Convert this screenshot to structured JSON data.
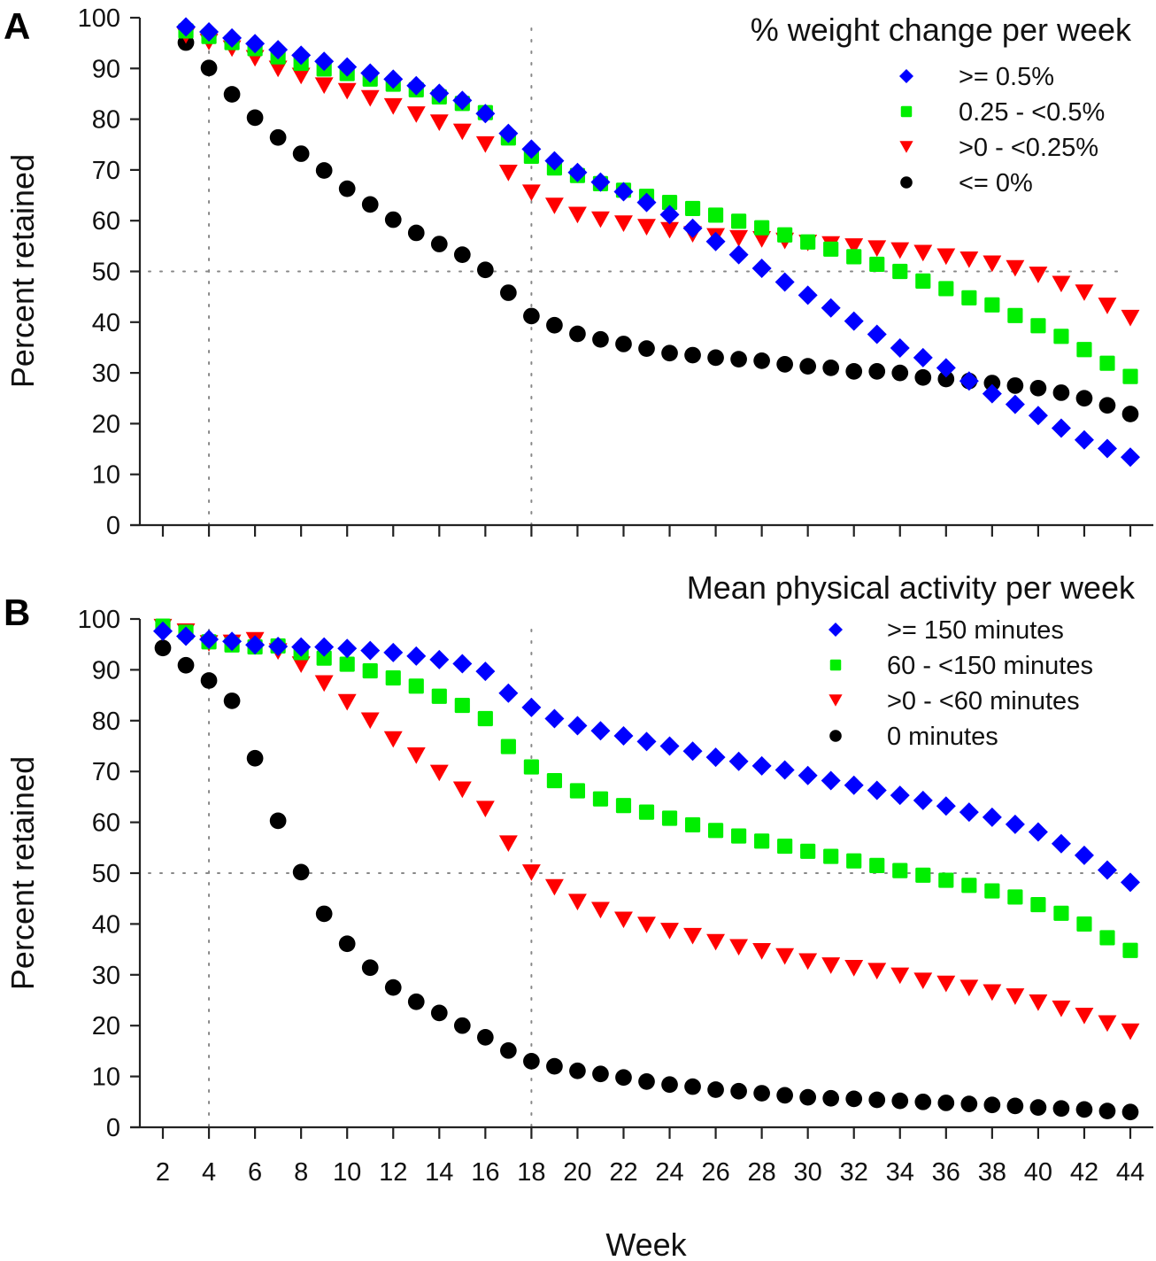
{
  "figure": {
    "xlabel": "Week",
    "ylabel": "Percent retained"
  },
  "chart_data": [
    {
      "type": "scatter",
      "panel": "A",
      "title": "% weight change per week",
      "xlabel": "",
      "ylabel": "Percent retained",
      "xlim": [
        2,
        44
      ],
      "ylim": [
        0,
        100
      ],
      "xticks": [
        2,
        4,
        6,
        8,
        10,
        12,
        14,
        16,
        18,
        20,
        22,
        24,
        26,
        28,
        30,
        32,
        34,
        36,
        38,
        40,
        42,
        44
      ],
      "xtick_labels_shown": false,
      "yticks": [
        0,
        10,
        20,
        30,
        40,
        50,
        60,
        70,
        80,
        90,
        100
      ],
      "reference_lines": {
        "x": [
          4,
          18
        ],
        "y": [
          50
        ]
      },
      "grid": false,
      "legend_position": "top-right",
      "series": [
        {
          "name": ">= 0.5%",
          "marker": "diamond",
          "color": "#0000ff",
          "x": [
            3,
            4,
            5,
            6,
            7,
            8,
            9,
            10,
            11,
            12,
            13,
            14,
            15,
            16,
            17,
            18,
            19,
            20,
            21,
            22,
            23,
            24,
            25,
            26,
            27,
            28,
            29,
            30,
            31,
            32,
            33,
            34,
            35,
            36,
            37,
            38,
            39,
            40,
            41,
            42,
            43,
            44
          ],
          "values": [
            98.2,
            97.2,
            96.0,
            94.9,
            93.7,
            92.6,
            91.4,
            90.3,
            89.1,
            87.9,
            86.6,
            85.1,
            83.7,
            81.1,
            77.2,
            74.1,
            71.8,
            69.5,
            67.6,
            65.7,
            63.6,
            61.2,
            58.5,
            55.9,
            53.3,
            50.6,
            47.9,
            45.3,
            42.8,
            40.2,
            37.6,
            34.9,
            33.0,
            31.0,
            28.4,
            25.9,
            23.8,
            21.6,
            19.1,
            16.8,
            15.1,
            13.4
          ]
        },
        {
          "name": "0.25 - <0.5%",
          "marker": "square",
          "color": "#00ee00",
          "x": [
            3,
            4,
            5,
            6,
            7,
            8,
            9,
            10,
            11,
            12,
            13,
            14,
            15,
            16,
            17,
            18,
            19,
            20,
            21,
            22,
            23,
            24,
            25,
            26,
            27,
            28,
            29,
            30,
            31,
            32,
            33,
            34,
            35,
            36,
            37,
            38,
            39,
            40,
            41,
            42,
            43,
            44
          ],
          "values": [
            97.4,
            96.3,
            95.1,
            93.9,
            92.3,
            91.0,
            89.9,
            89.0,
            87.9,
            86.9,
            85.8,
            84.4,
            83.1,
            81.3,
            76.3,
            72.7,
            70.4,
            68.9,
            67.3,
            66.0,
            64.8,
            63.6,
            62.4,
            61.1,
            59.9,
            58.6,
            57.2,
            55.8,
            54.4,
            52.9,
            51.4,
            50.0,
            48.1,
            46.6,
            44.8,
            43.4,
            41.3,
            39.3,
            37.2,
            34.6,
            31.9,
            29.3
          ]
        },
        {
          "name": ">0 - <0.25%",
          "marker": "triangle-down",
          "color": "#ff0000",
          "x": [
            3,
            4,
            5,
            6,
            7,
            8,
            9,
            10,
            11,
            12,
            13,
            14,
            15,
            16,
            17,
            18,
            19,
            20,
            21,
            22,
            23,
            24,
            25,
            26,
            27,
            28,
            29,
            30,
            31,
            32,
            33,
            34,
            35,
            36,
            37,
            38,
            39,
            40,
            41,
            42,
            43,
            44
          ],
          "values": [
            96.5,
            95.2,
            93.9,
            92.0,
            89.9,
            88.5,
            86.6,
            85.5,
            84.1,
            82.5,
            80.9,
            79.3,
            77.5,
            75.0,
            69.4,
            65.5,
            62.9,
            61.1,
            60.2,
            59.4,
            58.7,
            58.1,
            57.3,
            56.9,
            56.5,
            56.3,
            56.0,
            55.6,
            55.3,
            54.9,
            54.5,
            54.1,
            53.6,
            52.9,
            52.3,
            51.5,
            50.6,
            49.3,
            47.5,
            45.8,
            43.2,
            40.8
          ]
        },
        {
          "name": "<= 0%",
          "marker": "circle",
          "color": "#000000",
          "x": [
            3,
            4,
            5,
            6,
            7,
            8,
            9,
            10,
            11,
            12,
            13,
            14,
            15,
            16,
            17,
            18,
            19,
            20,
            21,
            22,
            23,
            24,
            25,
            26,
            27,
            28,
            29,
            30,
            31,
            32,
            33,
            34,
            35,
            36,
            37,
            38,
            39,
            40,
            41,
            42,
            43,
            44
          ],
          "values": [
            95.1,
            90.1,
            84.9,
            80.3,
            76.4,
            73.2,
            69.9,
            66.3,
            63.2,
            60.2,
            57.6,
            55.4,
            53.3,
            50.3,
            45.8,
            41.2,
            39.4,
            37.7,
            36.6,
            35.7,
            34.8,
            33.9,
            33.5,
            33.0,
            32.7,
            32.4,
            31.7,
            31.3,
            31.0,
            30.3,
            30.3,
            30.0,
            29.1,
            28.8,
            28.4,
            28.0,
            27.5,
            27.0,
            26.1,
            25.0,
            23.6,
            21.9
          ]
        }
      ]
    },
    {
      "type": "scatter",
      "panel": "B",
      "title": "Mean physical activity per week",
      "xlabel": "Week",
      "ylabel": "Percent retained",
      "xlim": [
        2,
        44
      ],
      "ylim": [
        0,
        100
      ],
      "xticks": [
        2,
        4,
        6,
        8,
        10,
        12,
        14,
        16,
        18,
        20,
        22,
        24,
        26,
        28,
        30,
        32,
        34,
        36,
        38,
        40,
        42,
        44
      ],
      "xtick_labels": [
        "2",
        "4",
        "6",
        "8",
        "10",
        "12",
        "14",
        "16",
        "18",
        "20",
        "22",
        "24",
        "26",
        "28",
        "30",
        "32",
        "34",
        "36",
        "38",
        "40",
        "42",
        "44"
      ],
      "yticks": [
        0,
        10,
        20,
        30,
        40,
        50,
        60,
        70,
        80,
        90,
        100
      ],
      "reference_lines": {
        "x": [
          4,
          18
        ],
        "y": [
          50
        ]
      },
      "grid": false,
      "legend_position": "top-right",
      "series": [
        {
          "name": ">= 150 minutes",
          "marker": "diamond",
          "color": "#0000ff",
          "x": [
            2,
            3,
            4,
            5,
            6,
            7,
            8,
            9,
            10,
            11,
            12,
            13,
            14,
            15,
            16,
            17,
            18,
            19,
            20,
            21,
            22,
            23,
            24,
            25,
            26,
            27,
            28,
            29,
            30,
            31,
            32,
            33,
            34,
            35,
            36,
            37,
            38,
            39,
            40,
            41,
            42,
            43,
            44
          ],
          "values": [
            97.6,
            96.6,
            96.0,
            95.6,
            94.9,
            94.6,
            94.5,
            94.5,
            94.2,
            93.8,
            93.4,
            92.7,
            92.0,
            91.2,
            89.7,
            85.4,
            82.6,
            80.4,
            79.0,
            78.0,
            77.0,
            75.9,
            75.0,
            74.0,
            72.8,
            72.0,
            71.1,
            70.3,
            69.2,
            68.2,
            67.3,
            66.3,
            65.3,
            64.3,
            63.2,
            62.0,
            61.0,
            59.6,
            58.1,
            55.8,
            53.5,
            50.6,
            48.2
          ]
        },
        {
          "name": "60 - <150 minutes",
          "marker": "square",
          "color": "#00ee00",
          "x": [
            2,
            3,
            4,
            5,
            6,
            7,
            8,
            9,
            10,
            11,
            12,
            13,
            14,
            15,
            16,
            17,
            18,
            19,
            20,
            21,
            22,
            23,
            24,
            25,
            26,
            27,
            28,
            29,
            30,
            31,
            32,
            33,
            34,
            35,
            36,
            37,
            38,
            39,
            40,
            41,
            42,
            43,
            44
          ],
          "values": [
            98.6,
            97.4,
            95.5,
            94.9,
            94.5,
            94.7,
            93.4,
            92.3,
            91.1,
            89.8,
            88.4,
            86.8,
            84.8,
            83.0,
            80.4,
            74.9,
            70.9,
            68.2,
            66.2,
            64.6,
            63.3,
            62.0,
            60.8,
            59.5,
            58.4,
            57.3,
            56.3,
            55.3,
            54.3,
            53.3,
            52.4,
            51.5,
            50.5,
            49.6,
            48.6,
            47.6,
            46.5,
            45.3,
            43.8,
            42.1,
            40.0,
            37.3,
            34.8
          ]
        },
        {
          "name": ">0 - <60 minutes",
          "marker": "triangle-down",
          "color": "#ff0000",
          "x": [
            2,
            3,
            4,
            5,
            6,
            7,
            8,
            9,
            10,
            11,
            12,
            13,
            14,
            15,
            16,
            17,
            18,
            19,
            20,
            21,
            22,
            23,
            24,
            25,
            26,
            27,
            28,
            29,
            30,
            31,
            32,
            33,
            34,
            35,
            36,
            37,
            38,
            39,
            40,
            41,
            42,
            43,
            44
          ],
          "values": [
            98.4,
            97.5,
            95.2,
            95.3,
            95.8,
            93.6,
            91.0,
            87.3,
            83.6,
            80.0,
            76.3,
            73.1,
            69.7,
            66.4,
            62.6,
            55.8,
            50.1,
            47.2,
            44.3,
            42.7,
            40.8,
            39.8,
            38.6,
            37.6,
            36.4,
            35.4,
            34.6,
            33.6,
            32.6,
            31.8,
            31.3,
            30.7,
            29.8,
            28.8,
            28.2,
            27.4,
            26.5,
            25.7,
            24.5,
            23.3,
            21.9,
            20.4,
            18.8
          ]
        },
        {
          "name": "0 minutes",
          "marker": "circle",
          "color": "#000000",
          "x": [
            2,
            3,
            4,
            5,
            6,
            7,
            8,
            9,
            10,
            11,
            12,
            13,
            14,
            15,
            16,
            17,
            18,
            19,
            20,
            21,
            22,
            23,
            24,
            25,
            26,
            27,
            28,
            29,
            30,
            31,
            32,
            33,
            34,
            35,
            36,
            37,
            38,
            39,
            40,
            41,
            42,
            43,
            44
          ],
          "values": [
            94.3,
            90.9,
            87.9,
            83.9,
            72.6,
            60.3,
            50.2,
            42.0,
            36.1,
            31.4,
            27.5,
            24.7,
            22.5,
            20.0,
            17.7,
            15.1,
            13.0,
            12.0,
            11.1,
            10.5,
            9.8,
            9.0,
            8.4,
            8.0,
            7.4,
            7.1,
            6.7,
            6.3,
            5.9,
            5.7,
            5.6,
            5.4,
            5.2,
            5.0,
            4.8,
            4.6,
            4.4,
            4.2,
            3.9,
            3.7,
            3.5,
            3.2,
            3.0
          ]
        }
      ]
    }
  ]
}
